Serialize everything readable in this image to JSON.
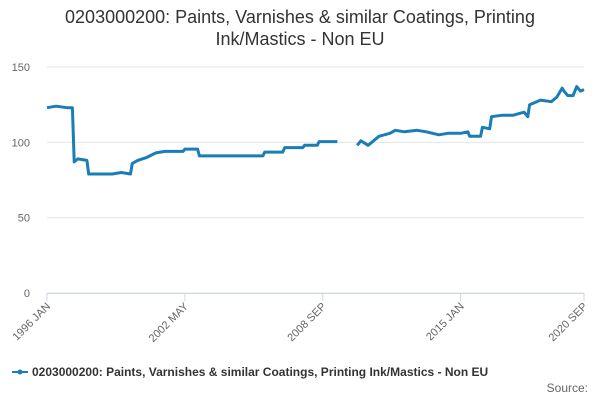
{
  "chart_data": {
    "type": "line",
    "title": "0203000200: Paints, Varnishes & similar Coatings, Printing Ink/Mastics - Non EU",
    "source": "Source:",
    "x": [
      "1996 JAN",
      "1996 JUN",
      "1996 DEC",
      "1997 MAR",
      "1997 APR",
      "1997 JUN",
      "1997 NOV",
      "1997 DEC",
      "1998 JUN",
      "1999 JAN",
      "1999 JUN",
      "1999 NOV",
      "1999 DEC",
      "2000 MAR",
      "2000 AUG",
      "2001 JAN",
      "2001 JUN",
      "2002 APR",
      "2002 MAY",
      "2002 DEC",
      "2003 JAN",
      "2005 DEC",
      "2006 JAN",
      "2006 NOV",
      "2006 DEC",
      "2007 OCT",
      "2007 NOV",
      "2008 JUN",
      "2008 JUL",
      "2009 MAY",
      "2009 NOV",
      "2010 APR",
      "2010 JUN",
      "2010 OCT",
      "2011 APR",
      "2011 OCT",
      "2012 JAN",
      "2012 JUN",
      "2013 JAN",
      "2013 JUN",
      "2014 JAN",
      "2014 JUN",
      "2015 JAN",
      "2015 MAY",
      "2015 JUN",
      "2015 DEC",
      "2016 JAN",
      "2016 MAY",
      "2016 JUN",
      "2016 DEC",
      "2017 JUN",
      "2017 DEC",
      "2018 FEB",
      "2018 MAR",
      "2018 SEP",
      "2019 MAR",
      "2019 JUN",
      "2019 SEP",
      "2019 OCT",
      "2019 DEC",
      "2020 MAR",
      "2020 MAY",
      "2020 JUL",
      "2020 SEP"
    ],
    "series": [
      {
        "name": "0203000200: Paints, Varnishes & similar Coatings, Printing Ink/Mastics - Non EU",
        "color": "#1a7db5",
        "values": [
          123,
          124,
          123,
          123,
          87,
          89,
          88,
          79,
          79,
          79,
          80,
          79,
          86,
          88,
          90,
          93,
          94,
          94,
          95.5,
          95.5,
          91,
          91,
          93.5,
          93.5,
          96.5,
          96.5,
          98,
          98,
          100.5,
          100.5,
          null,
          98,
          101,
          98,
          104,
          106,
          108,
          107,
          108,
          107,
          105,
          106,
          106,
          107,
          104,
          104,
          110,
          109,
          117,
          118,
          118,
          120,
          117,
          125,
          128,
          127,
          130,
          136,
          134,
          131,
          131,
          137,
          134,
          135
        ]
      }
    ],
    "xlim": [
      "1996 JAN",
      "2020 SEP"
    ],
    "xticks": [
      "1996 JAN",
      "2002 MAY",
      "2008 SEP",
      "2015 JAN",
      "2020 SEP"
    ],
    "ylim": [
      0,
      150
    ],
    "yticks": [
      0,
      50,
      100,
      150
    ],
    "grid": true,
    "legend": "bottom-left"
  }
}
